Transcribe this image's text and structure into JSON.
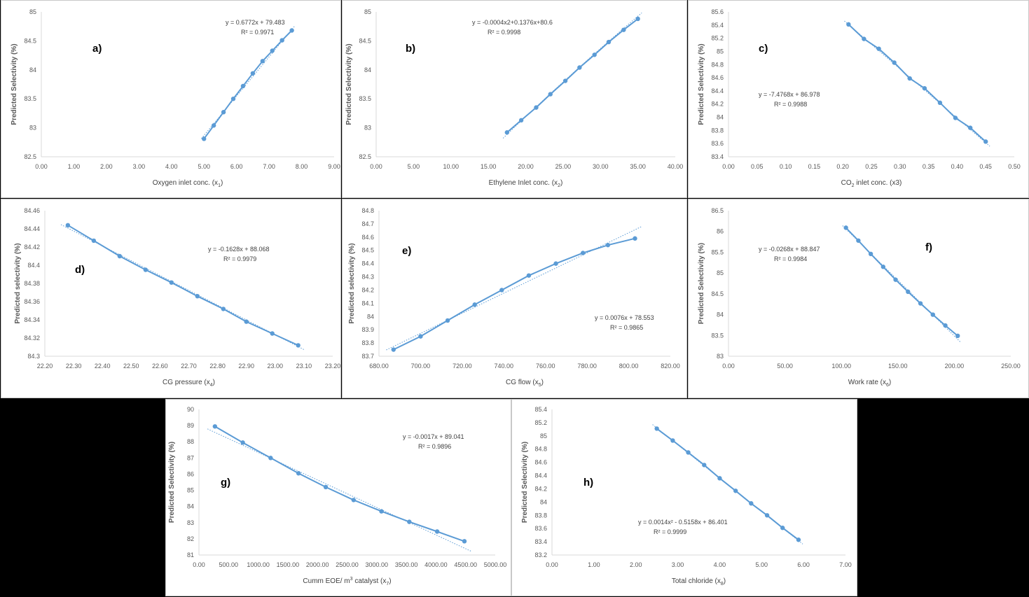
{
  "colors": {
    "series": "#5B9BD5",
    "axis_text": "#595959",
    "axis_line": "#d9d9d9",
    "background": "#000000"
  },
  "chart_data": [
    {
      "id": "a",
      "type": "line",
      "panel_label": "a)",
      "xlabel": "Oxygen inlet conc. (x",
      "xlabel_sub": "1",
      "xlabel_tail": ")",
      "ylabel": "Predicted Selectivity (%)",
      "xlim": [
        0,
        9
      ],
      "ylim": [
        82.5,
        85
      ],
      "xticks": [
        "0.00",
        "1.00",
        "2.00",
        "3.00",
        "4.00",
        "5.00",
        "6.00",
        "7.00",
        "8.00",
        "9.00"
      ],
      "yticks": [
        "82.5",
        "83",
        "83.5",
        "84",
        "84.5",
        "85"
      ],
      "x": [
        5.0,
        5.3,
        5.6,
        5.9,
        6.2,
        6.5,
        6.8,
        7.1,
        7.4,
        7.7
      ],
      "y": [
        82.81,
        83.04,
        83.27,
        83.5,
        83.72,
        83.94,
        84.15,
        84.33,
        84.51,
        84.68
      ],
      "trend": {
        "kind": "linear",
        "a": 0.6772,
        "b": 79.483
      },
      "equation": "y = 0.6772x + 79.483",
      "r2": "R² = 0.9971"
    },
    {
      "id": "b",
      "type": "line",
      "panel_label": "b)",
      "xlabel": "Ethylene Inlet conc. (x",
      "xlabel_sub": "2",
      "xlabel_tail": ")",
      "ylabel": "Predicted Selectivity (%)",
      "xlim": [
        0,
        40
      ],
      "ylim": [
        82.5,
        85
      ],
      "xticks": [
        "0.00",
        "5.00",
        "10.00",
        "15.00",
        "20.00",
        "25.00",
        "30.00",
        "35.00",
        "40.00"
      ],
      "yticks": [
        "82.5",
        "83",
        "83.5",
        "84",
        "84.5",
        "85"
      ],
      "x": [
        17.5,
        19.4,
        21.4,
        23.3,
        25.3,
        27.2,
        29.2,
        31.1,
        33.1,
        35.0
      ],
      "y": [
        82.92,
        83.13,
        83.35,
        83.58,
        83.81,
        84.04,
        84.26,
        84.48,
        84.69,
        84.88
      ],
      "trend": {
        "kind": "quad",
        "a": -0.0004,
        "b": 0.1376,
        "c": 80.6
      },
      "equation": "y = -0.0004x2+0.1376x+80.6",
      "r2": "R² = 0.9998"
    },
    {
      "id": "c",
      "type": "line",
      "panel_label": "c)",
      "xlabel": "CO",
      "xlabel_sub": "2",
      "xlabel_tail": " inlet conc. (x3)",
      "ylabel": "Predicted Selectivity (%)",
      "xlim": [
        0,
        0.5
      ],
      "ylim": [
        83.4,
        85.6
      ],
      "xticks": [
        "0.00",
        "0.05",
        "0.10",
        "0.15",
        "0.20",
        "0.25",
        "0.30",
        "0.35",
        "0.40",
        "0.45",
        "0.50"
      ],
      "yticks": [
        "83.4",
        "83.6",
        "83.8",
        "84",
        "84.2",
        "84.4",
        "84.6",
        "84.8",
        "85",
        "85.2",
        "85.4",
        "85.6"
      ],
      "x": [
        0.21,
        0.237,
        0.263,
        0.29,
        0.317,
        0.343,
        0.37,
        0.397,
        0.423,
        0.45
      ],
      "y": [
        85.41,
        85.19,
        85.04,
        84.83,
        84.59,
        84.44,
        84.22,
        83.99,
        83.84,
        83.63
      ],
      "trend": {
        "kind": "linear",
        "a": -7.4768,
        "b": 86.978
      },
      "equation": "y = -7.4768x + 86.978",
      "r2": "R² = 0.9988"
    },
    {
      "id": "d",
      "type": "line",
      "panel_label": "d)",
      "xlabel": "CG pressure (x",
      "xlabel_sub": "4",
      "xlabel_tail": ")",
      "ylabel": "Predicted selectivity (%)",
      "xlim": [
        22.2,
        23.2
      ],
      "ylim": [
        84.3,
        84.46
      ],
      "xticks": [
        "22.20",
        "22.30",
        "22.40",
        "22.50",
        "22.60",
        "22.70",
        "22.80",
        "22.90",
        "23.00",
        "23.10",
        "23.20"
      ],
      "yticks": [
        "84.3",
        "84.32",
        "84.34",
        "84.36",
        "84.38",
        "84.4",
        "84.42",
        "84.44",
        "84.46"
      ],
      "x": [
        22.28,
        22.37,
        22.46,
        22.55,
        22.64,
        22.73,
        22.82,
        22.9,
        22.99,
        23.08
      ],
      "y": [
        84.444,
        84.427,
        84.41,
        84.395,
        84.381,
        84.366,
        84.352,
        84.338,
        84.325,
        84.312
      ],
      "trend": {
        "kind": "linear",
        "a": -0.1628,
        "b": 88.068
      },
      "equation": "y = -0.1628x + 88.068",
      "r2": "R² = 0.9979"
    },
    {
      "id": "e",
      "type": "line",
      "panel_label": "e)",
      "xlabel": "CG flow (x",
      "xlabel_sub": "5",
      "xlabel_tail": ")",
      "ylabel": "Predicted selectivity (%)",
      "xlim": [
        680,
        820
      ],
      "ylim": [
        83.7,
        84.8
      ],
      "xticks": [
        "680.00",
        "700.00",
        "720.00",
        "740.00",
        "760.00",
        "780.00",
        "800.00",
        "820.00"
      ],
      "yticks": [
        "83.7",
        "83.8",
        "83.9",
        "84",
        "84.1",
        "84.2",
        "84.3",
        "84.4",
        "84.5",
        "84.6",
        "84.7",
        "84.8"
      ],
      "x": [
        687,
        700,
        713,
        726,
        739,
        752,
        765,
        778,
        790,
        803
      ],
      "y": [
        83.75,
        83.85,
        83.97,
        84.09,
        84.2,
        84.31,
        84.4,
        84.48,
        84.54,
        84.59
      ],
      "trend": {
        "kind": "linear",
        "a": 0.0076,
        "b": 78.553
      },
      "equation": "y = 0.0076x + 78.553",
      "r2": "R² = 0.9865"
    },
    {
      "id": "f",
      "type": "line",
      "panel_label": "f)",
      "xlabel": "Work rate (x",
      "xlabel_sub": "6",
      "xlabel_tail": ")",
      "ylabel": "Predicted Selectivity (%)",
      "xlim": [
        0,
        250
      ],
      "ylim": [
        83,
        86.5
      ],
      "xticks": [
        "0.00",
        "50.00",
        "100.00",
        "150.00",
        "200.00",
        "250.00"
      ],
      "yticks": [
        "83",
        "83.5",
        "84",
        "84.5",
        "85",
        "85.5",
        "86",
        "86.5"
      ],
      "x": [
        104,
        115,
        126,
        137,
        148,
        159,
        170,
        181,
        192,
        203
      ],
      "y": [
        86.09,
        85.78,
        85.46,
        85.15,
        84.84,
        84.55,
        84.27,
        84.0,
        83.74,
        83.49
      ],
      "trend": {
        "kind": "linear",
        "a": -0.0268,
        "b": 88.847
      },
      "equation": "y = -0.0268x + 88.847",
      "r2": "R² = 0.9984"
    },
    {
      "id": "g",
      "type": "line",
      "panel_label": "g)",
      "xlabel": "Cumm EOE/ m",
      "xlabel_sup": "3",
      "xlabel_mid": " catalyst (x",
      "xlabel_sub": "7",
      "xlabel_tail": ")",
      "ylabel": "Predicted Selectivity (%)",
      "xlim": [
        0,
        5000
      ],
      "ylim": [
        81,
        90
      ],
      "xticks": [
        "0.00",
        "500.00",
        "1000.00",
        "1500.00",
        "2000.00",
        "2500.00",
        "3000.00",
        "3500.00",
        "4000.00",
        "4500.00",
        "5000.00"
      ],
      "yticks": [
        "81",
        "82",
        "83",
        "84",
        "85",
        "86",
        "87",
        "88",
        "89",
        "90"
      ],
      "x": [
        270,
        740,
        1210,
        1680,
        2140,
        2610,
        3080,
        3550,
        4020,
        4480
      ],
      "y": [
        88.95,
        87.95,
        87.0,
        86.05,
        85.2,
        84.4,
        83.7,
        83.05,
        82.45,
        81.85
      ],
      "trend": {
        "kind": "linear",
        "a": -0.0017,
        "b": 89.041
      },
      "equation": "y = -0.0017x + 89.041",
      "r2": "R² = 0.9896"
    },
    {
      "id": "h",
      "type": "line",
      "panel_label": "h)",
      "xlabel": "Total chloride (x",
      "xlabel_sub": "8",
      "xlabel_tail": ")",
      "ylabel": "Predicted Selectivity (%)",
      "xlim": [
        0,
        7
      ],
      "ylim": [
        83.2,
        85.4
      ],
      "xticks": [
        "0.00",
        "1.00",
        "2.00",
        "3.00",
        "4.00",
        "5.00",
        "6.00",
        "7.00"
      ],
      "yticks": [
        "83.2",
        "83.4",
        "83.6",
        "83.8",
        "84",
        "84.2",
        "84.4",
        "84.6",
        "84.8",
        "85",
        "85.2",
        "85.4"
      ],
      "x": [
        2.5,
        2.88,
        3.25,
        3.63,
        4.0,
        4.38,
        4.75,
        5.13,
        5.5,
        5.88
      ],
      "y": [
        85.11,
        84.93,
        84.75,
        84.56,
        84.36,
        84.17,
        83.98,
        83.8,
        83.61,
        83.43
      ],
      "trend": {
        "kind": "quad",
        "a": 0.0014,
        "b": -0.5158,
        "c": 86.401
      },
      "equation": "y = 0.0014x² - 0.5158x + 86.401",
      "r2": "R² = 0.9999"
    }
  ]
}
